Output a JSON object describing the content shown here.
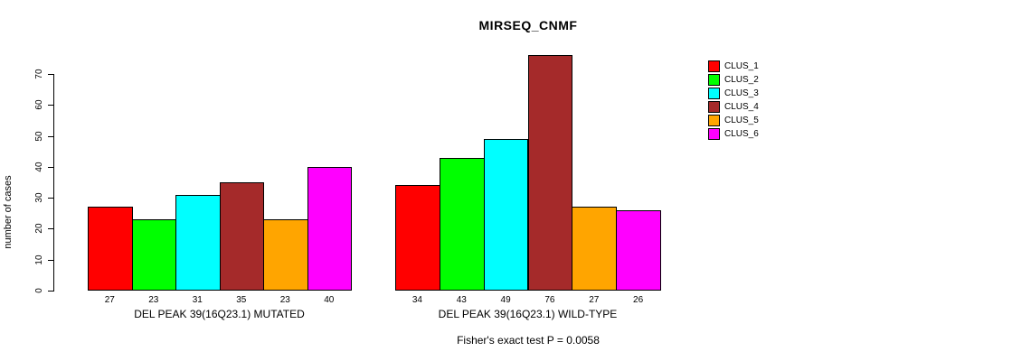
{
  "chart_data": {
    "type": "bar",
    "title": "MIRSEQ_CNMF",
    "ylabel": "number of cases",
    "ylim": [
      0,
      70
    ],
    "yticks": [
      0,
      10,
      20,
      30,
      40,
      50,
      60,
      70
    ],
    "grid": false,
    "legend_position": "top-right",
    "categories": [
      "DEL PEAK 39(16Q23.1) MUTATED",
      "DEL PEAK 39(16Q23.1) WILD-TYPE"
    ],
    "series": [
      {
        "name": "CLUS_1",
        "color": "#ff0000",
        "values": [
          27,
          34
        ]
      },
      {
        "name": "CLUS_2",
        "color": "#00ff00",
        "values": [
          23,
          43
        ]
      },
      {
        "name": "CLUS_3",
        "color": "#00ffff",
        "values": [
          31,
          49
        ]
      },
      {
        "name": "CLUS_4",
        "color": "#a52a2a",
        "values": [
          35,
          76
        ]
      },
      {
        "name": "CLUS_5",
        "color": "#ffa500",
        "values": [
          23,
          27
        ]
      },
      {
        "name": "CLUS_6",
        "color": "#ff00ff",
        "values": [
          40,
          26
        ]
      }
    ],
    "bar_value_labels": [
      [
        27,
        23,
        31,
        35,
        23,
        40
      ],
      [
        34,
        43,
        49,
        76,
        27,
        26
      ]
    ],
    "annotation": "Fisher's exact test P = 0.0058"
  }
}
